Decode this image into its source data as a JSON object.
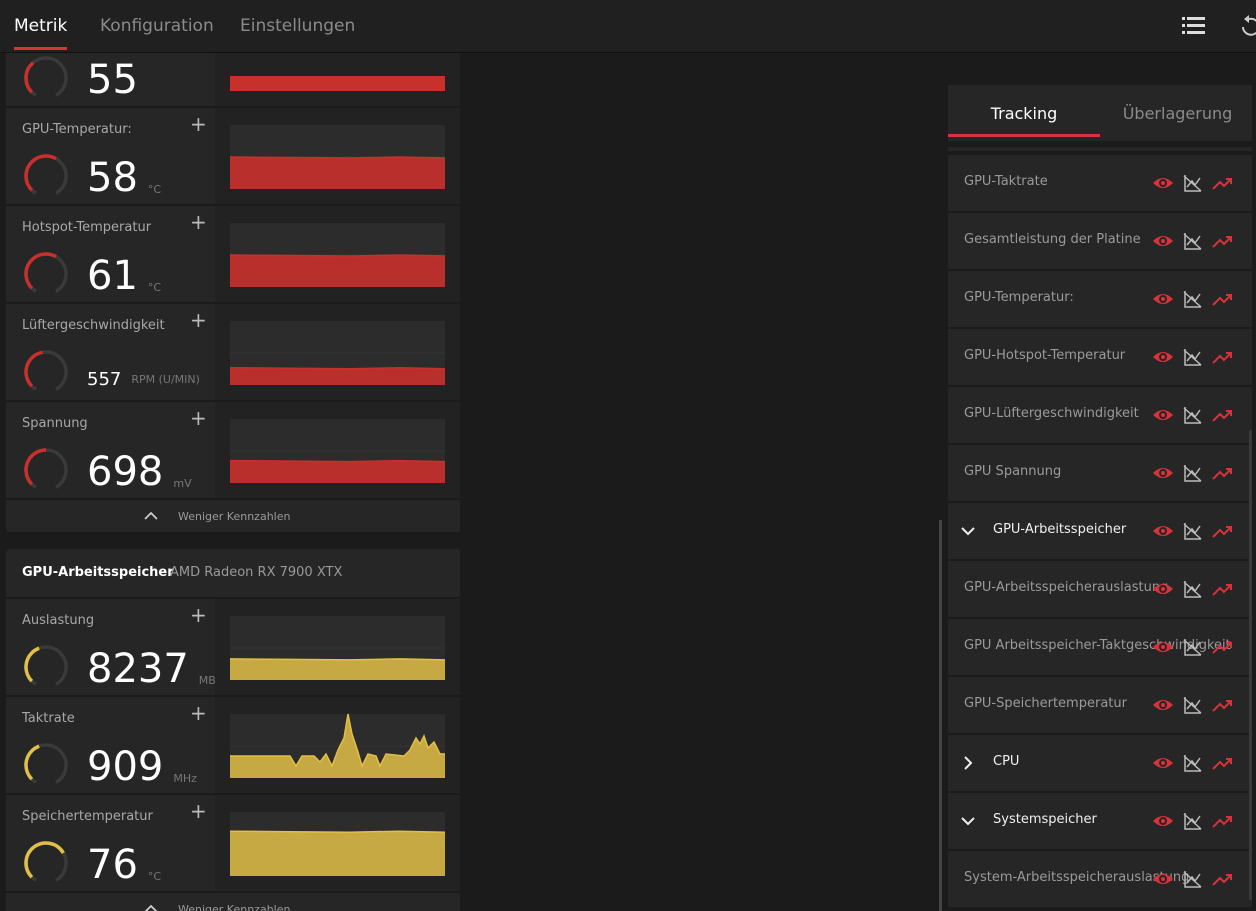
{
  "tabs": [
    "Metrik",
    "Konfiguration",
    "Einstellungen"
  ],
  "gpu_section": {
    "color": "#c8302c",
    "partial_value": "55",
    "metrics": [
      {
        "label": "GPU-Temperatur:",
        "value": "58",
        "unit": "°C"
      },
      {
        "label": "Hotspot-Temperatur",
        "value": "61",
        "unit": "°C"
      },
      {
        "label": "Lüftergeschwindigkeit",
        "value": "557",
        "unit": "RPM (U/MIN)"
      },
      {
        "label": "Spannung",
        "value": "698",
        "unit": "mV"
      }
    ],
    "footer": "Weniger Kennzahlen"
  },
  "memory_section": {
    "color": "#e2bf48",
    "title": "GPU-Arbeitsspeicher",
    "device": "AMD Radeon RX 7900 XTX",
    "metrics": [
      {
        "label": "Auslastung",
        "value": "8237",
        "unit": "MB"
      },
      {
        "label": "Taktrate",
        "value": "909",
        "unit": "MHz"
      },
      {
        "label": "Speichertemperatur",
        "value": "76",
        "unit": "°C"
      }
    ],
    "footer": "Weniger Kennzahlen"
  },
  "side_panel": {
    "tabs": [
      "Tracking",
      "Überlagerung"
    ],
    "items": [
      {
        "label": "GPU-Taktrate"
      },
      {
        "label": "Gesamtleistung der Platine"
      },
      {
        "label": "GPU-Temperatur:"
      },
      {
        "label": "GPU-Hotspot-Temperatur"
      },
      {
        "label": "GPU-Lüftergeschwindigkeit"
      },
      {
        "label": "GPU Spannung"
      },
      {
        "label": "GPU-Arbeitsspeicher",
        "expanded": true
      },
      {
        "label": "GPU-Arbeitsspeicherauslastung"
      },
      {
        "label": "GPU Arbeitsspeicher-Taktgeschwindigkeit"
      },
      {
        "label": "GPU-Speichertemperatur"
      },
      {
        "label": "CPU",
        "expanded": false
      },
      {
        "label": "Systemspeicher",
        "expanded": true
      },
      {
        "label": "System-Arbeitsspeicherauslastung"
      }
    ]
  }
}
